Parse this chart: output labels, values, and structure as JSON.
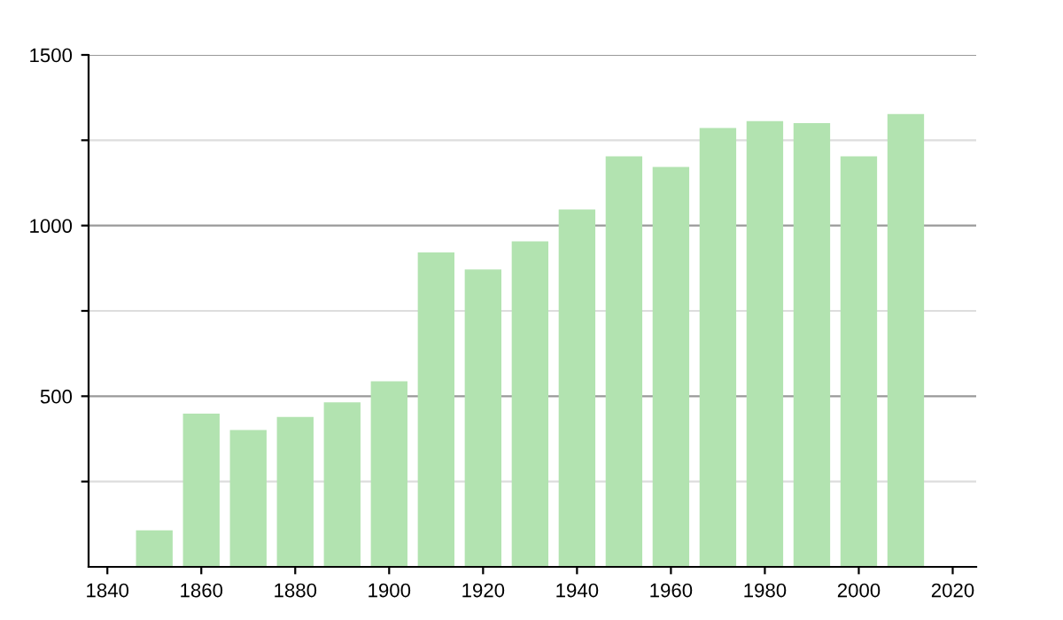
{
  "chart_data": {
    "type": "bar",
    "x": [
      1850,
      1860,
      1870,
      1880,
      1890,
      1900,
      1910,
      1920,
      1930,
      1940,
      1950,
      1960,
      1970,
      1980,
      1990,
      2000,
      2010
    ],
    "values": [
      107,
      449,
      401,
      439,
      482,
      544,
      921,
      871,
      954,
      1047,
      1203,
      1172,
      1286,
      1306,
      1300,
      1203,
      1327
    ],
    "color": "#b2e3b0",
    "xlim": [
      1836,
      2025
    ],
    "xticks": [
      1840,
      1860,
      1880,
      1900,
      1920,
      1940,
      1960,
      1980,
      2000,
      2020
    ],
    "ylim": [
      0,
      1500
    ],
    "yticks": [
      {
        "value": 250,
        "label": null
      },
      500,
      {
        "value": 750,
        "label": null
      },
      1000,
      {
        "value": 1250,
        "label": null
      },
      1500
    ],
    "grid": "y"
  }
}
